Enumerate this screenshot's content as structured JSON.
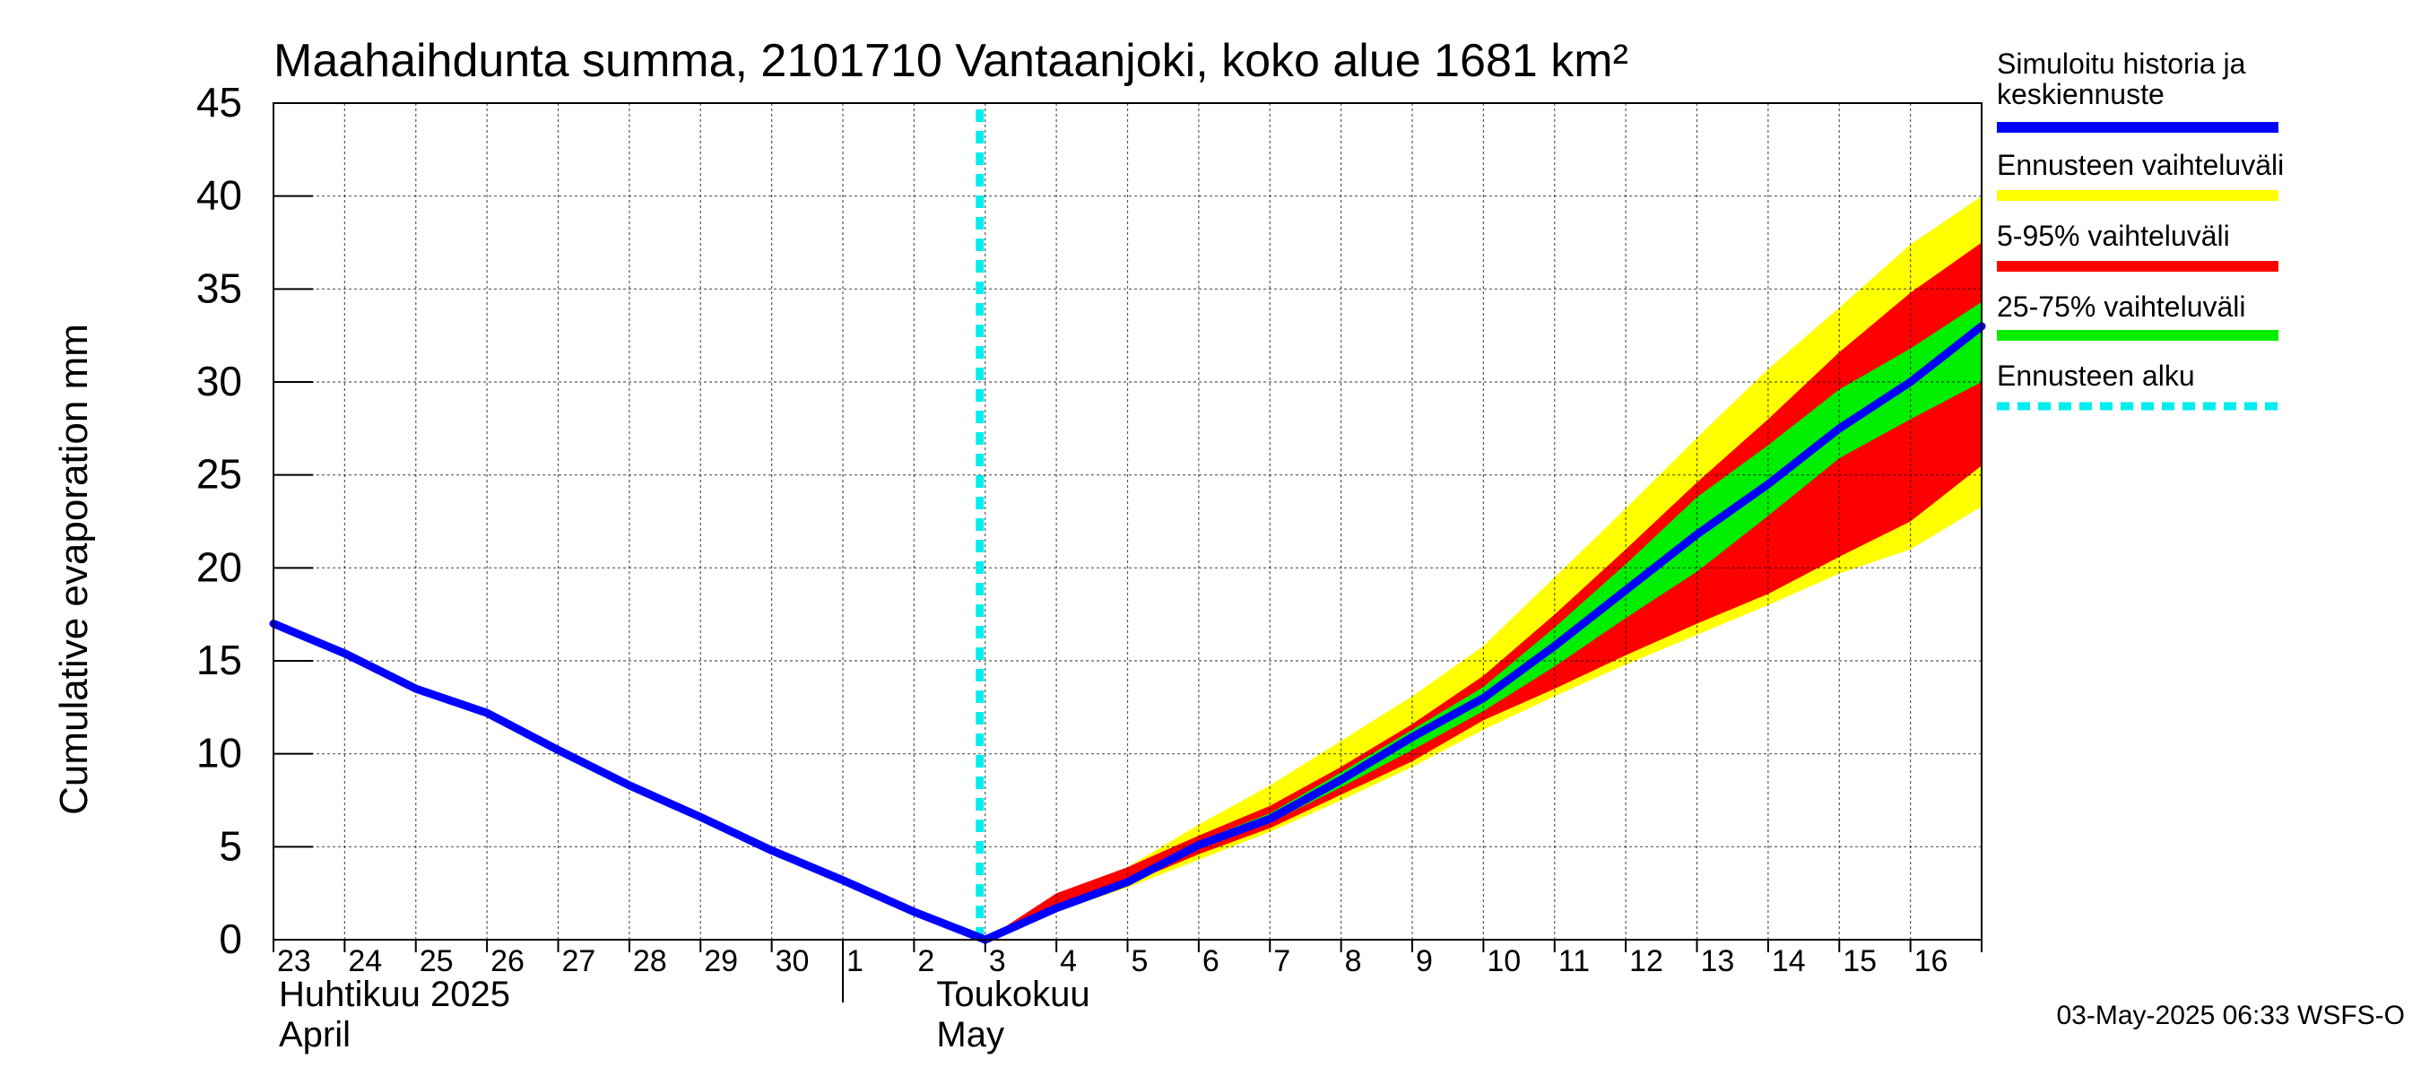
{
  "chart_data": {
    "type": "line",
    "title": "Maahaihdunta summa, 2101710 Vantaanjoki, koko alue 1681 km²",
    "ylabel": "Cumulative evaporation   mm",
    "ylim": [
      0,
      45
    ],
    "yticks": [
      0,
      5,
      10,
      15,
      20,
      25,
      30,
      35,
      40,
      45
    ],
    "xlim": [
      0,
      24
    ],
    "x_tick_labels": [
      {
        "x": 0,
        "label": "23"
      },
      {
        "x": 1,
        "label": "24"
      },
      {
        "x": 2,
        "label": "25"
      },
      {
        "x": 3,
        "label": "26"
      },
      {
        "x": 4,
        "label": "27"
      },
      {
        "x": 5,
        "label": "28"
      },
      {
        "x": 6,
        "label": "29"
      },
      {
        "x": 7,
        "label": "30"
      },
      {
        "x": 8,
        "label": "1"
      },
      {
        "x": 9,
        "label": "2"
      },
      {
        "x": 10,
        "label": "3"
      },
      {
        "x": 11,
        "label": "4"
      },
      {
        "x": 12,
        "label": "5"
      },
      {
        "x": 13,
        "label": "6"
      },
      {
        "x": 14,
        "label": "7"
      },
      {
        "x": 15,
        "label": "8"
      },
      {
        "x": 16,
        "label": "9"
      },
      {
        "x": 17,
        "label": "10"
      },
      {
        "x": 18,
        "label": "11"
      },
      {
        "x": 19,
        "label": "12"
      },
      {
        "x": 20,
        "label": "13"
      },
      {
        "x": 21,
        "label": "14"
      },
      {
        "x": 22,
        "label": "15"
      },
      {
        "x": 23,
        "label": "16"
      }
    ],
    "month_labels": [
      {
        "x": 0,
        "fi": "Huhtikuu  2025",
        "en": "April"
      },
      {
        "x": 9,
        "fi": "Toukokuu",
        "en": "May"
      }
    ],
    "month_divider_x": 8,
    "forecast_start_x": 10,
    "series": [
      {
        "name": "Simuloitu historia ja keskiennuste",
        "color": "#0000ff",
        "points": [
          [
            0,
            17.0
          ],
          [
            1,
            15.4
          ],
          [
            2,
            13.5
          ],
          [
            3,
            12.2
          ],
          [
            4,
            10.2
          ],
          [
            5,
            8.3
          ],
          [
            6,
            6.6
          ],
          [
            7,
            4.8
          ],
          [
            8,
            3.2
          ],
          [
            9,
            1.5
          ],
          [
            10,
            0.0
          ],
          [
            11,
            1.7
          ],
          [
            12,
            3.1
          ],
          [
            13,
            5.1
          ],
          [
            14,
            6.5
          ],
          [
            15,
            8.6
          ],
          [
            16,
            10.9
          ],
          [
            17,
            13.0
          ],
          [
            18,
            15.8
          ],
          [
            19,
            18.8
          ],
          [
            20,
            21.8
          ],
          [
            21,
            24.5
          ],
          [
            22,
            27.5
          ],
          [
            23,
            30.0
          ],
          [
            24,
            33.0
          ]
        ]
      }
    ],
    "bands": [
      {
        "name": "Ennusteen vaihteluväli",
        "color": "#ffff00",
        "x": [
          10,
          11,
          12,
          13,
          14,
          15,
          16,
          17,
          18,
          19,
          20,
          21,
          22,
          23,
          24
        ],
        "upper": [
          0.0,
          2.2,
          3.9,
          6.2,
          8.3,
          10.7,
          13.1,
          15.8,
          19.5,
          23.2,
          27.0,
          30.7,
          34.0,
          37.4,
          40.0
        ],
        "lower": [
          0.0,
          1.5,
          2.8,
          4.3,
          5.8,
          7.5,
          9.3,
          11.3,
          13.1,
          14.8,
          16.4,
          18.0,
          19.7,
          21.0,
          23.3
        ]
      },
      {
        "name": "5-95% vaihteluväli",
        "color": "#ff0000",
        "x": [
          10,
          11,
          12,
          13,
          14,
          15,
          16,
          17,
          18,
          19,
          20,
          21,
          22,
          23,
          24
        ],
        "upper": [
          0.0,
          2.5,
          3.9,
          5.6,
          7.2,
          9.3,
          11.6,
          14.2,
          17.5,
          21.0,
          24.6,
          28.0,
          31.6,
          34.8,
          37.5
        ],
        "lower": [
          0.0,
          1.5,
          3.0,
          4.6,
          6.0,
          7.8,
          9.6,
          11.8,
          13.5,
          15.3,
          17.0,
          18.6,
          20.6,
          22.5,
          25.5
        ]
      },
      {
        "name": "25-75% vaihteluväli",
        "color": "#00ee00",
        "x": [
          10,
          11,
          12,
          13,
          14,
          15,
          16,
          17,
          18,
          19,
          20,
          21,
          22,
          23,
          24
        ],
        "upper": [
          0.0,
          1.8,
          3.3,
          5.3,
          6.8,
          9.0,
          11.3,
          13.6,
          16.8,
          20.2,
          23.8,
          26.6,
          29.6,
          31.8,
          34.3
        ],
        "lower": [
          0.0,
          1.6,
          2.9,
          4.9,
          6.3,
          8.2,
          10.2,
          12.3,
          14.7,
          17.3,
          19.8,
          22.8,
          25.9,
          28.0,
          30.0
        ]
      }
    ],
    "legend": [
      {
        "label": "Simuloitu historia ja keskiennuste",
        "color": "#0000ff",
        "style": "solid"
      },
      {
        "label": "Ennusteen vaihteluväli",
        "color": "#ffff00",
        "style": "solid"
      },
      {
        "label": "5-95% vaihteluväli",
        "color": "#ff0000",
        "style": "solid"
      },
      {
        "label": "25-75% vaihteluväli",
        "color": "#00ee00",
        "style": "solid"
      },
      {
        "label": "Ennusteen alku",
        "color": "#00eeee",
        "style": "dashed"
      }
    ],
    "legend_position": "right",
    "grid": true,
    "footer": "03-May-2025 06:33 WSFS-O"
  }
}
